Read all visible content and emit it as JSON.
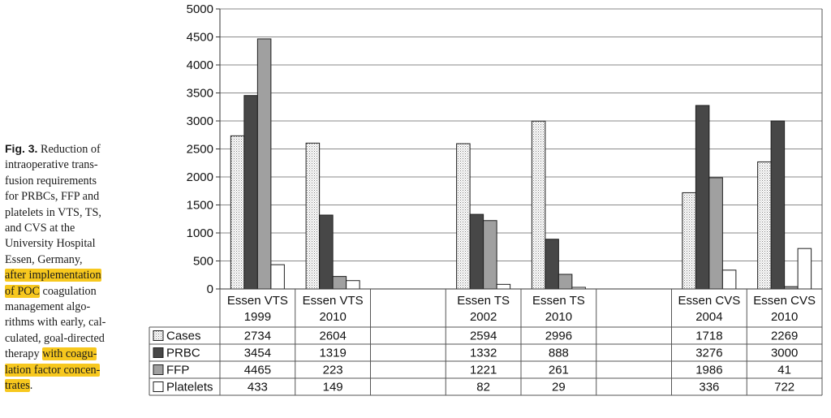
{
  "caption": {
    "fig_label": "Fig. 3.",
    "lines": [
      {
        "plain": " Reduction of",
        "hl": ""
      },
      {
        "plain": "intraoperative trans-",
        "hl": ""
      },
      {
        "plain": "fusion requirements",
        "hl": ""
      },
      {
        "plain": "for PRBCs, FFP and",
        "hl": ""
      },
      {
        "plain": "platelets in VTS, TS,",
        "hl": ""
      },
      {
        "plain": "and CVS at the",
        "hl": ""
      },
      {
        "plain": "University Hospital",
        "hl": ""
      },
      {
        "plain": "Essen, Germany,",
        "hl": ""
      },
      {
        "plain": "",
        "hl": "after implementation"
      },
      {
        "plain": " coagulation",
        "hl": "of POC",
        "hl_first": true
      },
      {
        "plain": "management algo-",
        "hl": ""
      },
      {
        "plain": "rithms with early, cal-",
        "hl": ""
      },
      {
        "plain": "culated, goal-directed",
        "hl": ""
      },
      {
        "plain": "therapy ",
        "hl": "with coagu-"
      },
      {
        "plain": "",
        "hl": "lation factor concen-"
      },
      {
        "plain": ".",
        "hl": "trates",
        "hl_first": true
      }
    ]
  },
  "chart_data": {
    "type": "bar",
    "ylim": [
      0,
      5000
    ],
    "yticks": [
      "0",
      "500",
      "1000",
      "1500",
      "2000",
      "2500",
      "3000",
      "3500",
      "4000",
      "4500",
      "5000"
    ],
    "categories": [
      {
        "line1": "Essen VTS",
        "line2": "1999"
      },
      {
        "line1": "Essen VTS",
        "line2": "2010"
      },
      {
        "line1": "",
        "line2": ""
      },
      {
        "line1": "Essen TS",
        "line2": "2002"
      },
      {
        "line1": "Essen TS",
        "line2": "2010"
      },
      {
        "line1": "",
        "line2": ""
      },
      {
        "line1": "Essen CVS",
        "line2": "2004"
      },
      {
        "line1": "Essen CVS",
        "line2": "2010"
      }
    ],
    "series": [
      {
        "name": "Cases",
        "pattern": "dots",
        "values": [
          2734,
          2604,
          null,
          2594,
          2996,
          null,
          1718,
          2269
        ]
      },
      {
        "name": "PRBC",
        "color": "#474747",
        "values": [
          3454,
          1319,
          null,
          1332,
          888,
          null,
          3276,
          3000
        ]
      },
      {
        "name": "FFP",
        "color": "#a0a0a0",
        "values": [
          4465,
          223,
          null,
          1221,
          261,
          null,
          1986,
          41
        ]
      },
      {
        "name": "Platelets",
        "color": "#ffffff",
        "values": [
          433,
          149,
          null,
          82,
          29,
          null,
          336,
          722
        ]
      }
    ],
    "grid": true,
    "legend": "data-table-left"
  }
}
